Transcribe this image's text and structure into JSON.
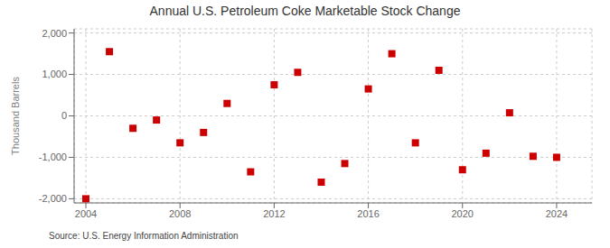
{
  "chart_data": {
    "type": "scatter",
    "title": "Annual U.S. Petroleum Coke Marketable Stock Change",
    "ylabel": "Thousand Barrels",
    "annotations": [
      "Source: U.S. Energy Information Administration"
    ],
    "x": [
      2004,
      2005,
      2006,
      2007,
      2008,
      2009,
      2010,
      2011,
      2012,
      2013,
      2014,
      2015,
      2016,
      2017,
      2018,
      2019,
      2020,
      2021,
      2022,
      2023,
      2024
    ],
    "values": [
      -2000,
      1550,
      -300,
      -100,
      -650,
      -400,
      300,
      -1350,
      750,
      1050,
      -1600,
      -1150,
      650,
      1500,
      -650,
      1100,
      -1300,
      -900,
      75,
      -975,
      -1000
    ],
    "color": "#cc0000",
    "marker": "square",
    "xlim": [
      2003.5,
      2025.5
    ],
    "xticks": [
      2004,
      2008,
      2012,
      2016,
      2020,
      2024
    ],
    "ylim": [
      -2100,
      2100
    ],
    "yticks": [
      {
        "value": -2000,
        "label": "-2,000"
      },
      {
        "value": -1000,
        "label": "-1,000"
      },
      0,
      {
        "value": 1000,
        "label": "1,000"
      },
      {
        "value": 2000,
        "label": "2,000"
      }
    ],
    "grid": true
  }
}
